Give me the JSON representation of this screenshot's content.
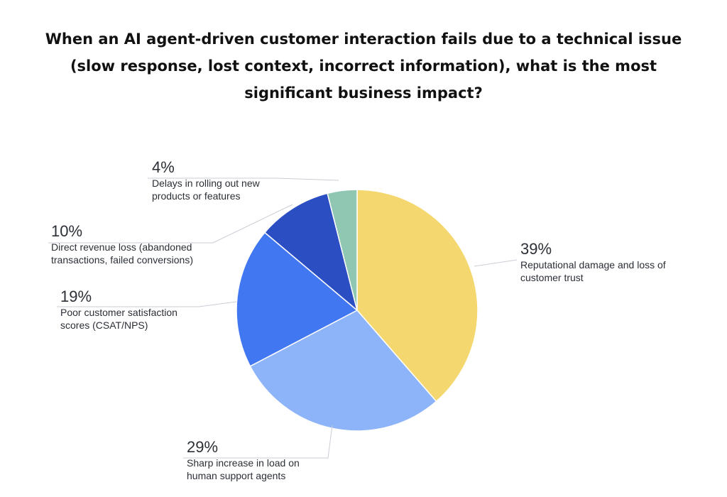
{
  "chart_data": {
    "type": "pie",
    "title": "When an AI agent-driven customer interaction fails due to a technical issue (slow response, lost context, incorrect information), what is the most significant business impact?",
    "slices": [
      {
        "value": 39,
        "percent_label": "39%",
        "label_lines": [
          "Reputational damage and loss of",
          "customer trust"
        ],
        "color": "#f4d86f"
      },
      {
        "value": 29,
        "percent_label": "29%",
        "label_lines": [
          "Sharp increase in load on",
          "human support agents"
        ],
        "color": "#8db3f9"
      },
      {
        "value": 19,
        "percent_label": "19%",
        "label_lines": [
          "Poor customer satisfaction",
          "scores (CSAT/NPS)"
        ],
        "color": "#4277f2"
      },
      {
        "value": 10,
        "percent_label": "10%",
        "label_lines": [
          "Direct revenue loss (abandoned",
          "transactions, failed conversions)"
        ],
        "color": "#2b4fc3"
      },
      {
        "value": 4,
        "percent_label": "4%",
        "label_lines": [
          "Delays in rolling out new",
          "products or features"
        ],
        "color": "#8fc7b2"
      }
    ]
  }
}
